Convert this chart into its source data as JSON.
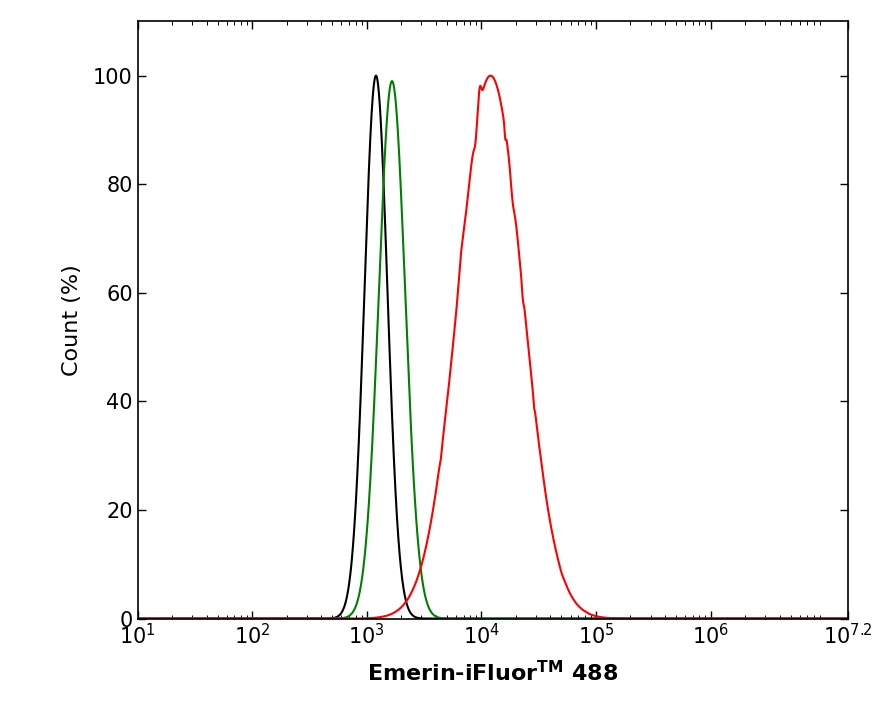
{
  "ylabel": "Count (%)",
  "xmin": 1,
  "xmax": 7.2,
  "ymin": 0,
  "ymax": 110,
  "yticks": [
    0,
    20,
    40,
    60,
    80,
    100
  ],
  "background_color": "#ffffff",
  "curves": {
    "black": {
      "color": "#000000",
      "peak_log10": 3.08,
      "sigma_log10": 0.1,
      "peak_height": 100,
      "skew": -0.3
    },
    "green": {
      "color": "#008000",
      "peak_log10": 3.22,
      "sigma_log10": 0.115,
      "peak_height": 99,
      "skew": 0.1
    },
    "red": {
      "color": "#ff0000",
      "peak_log10": 4.08,
      "sigma_log10": 0.28,
      "peak_height": 100,
      "skew": 0.2
    }
  },
  "linewidth": 1.5,
  "figsize": [
    8.88,
    7.11
  ],
  "dpi": 100
}
